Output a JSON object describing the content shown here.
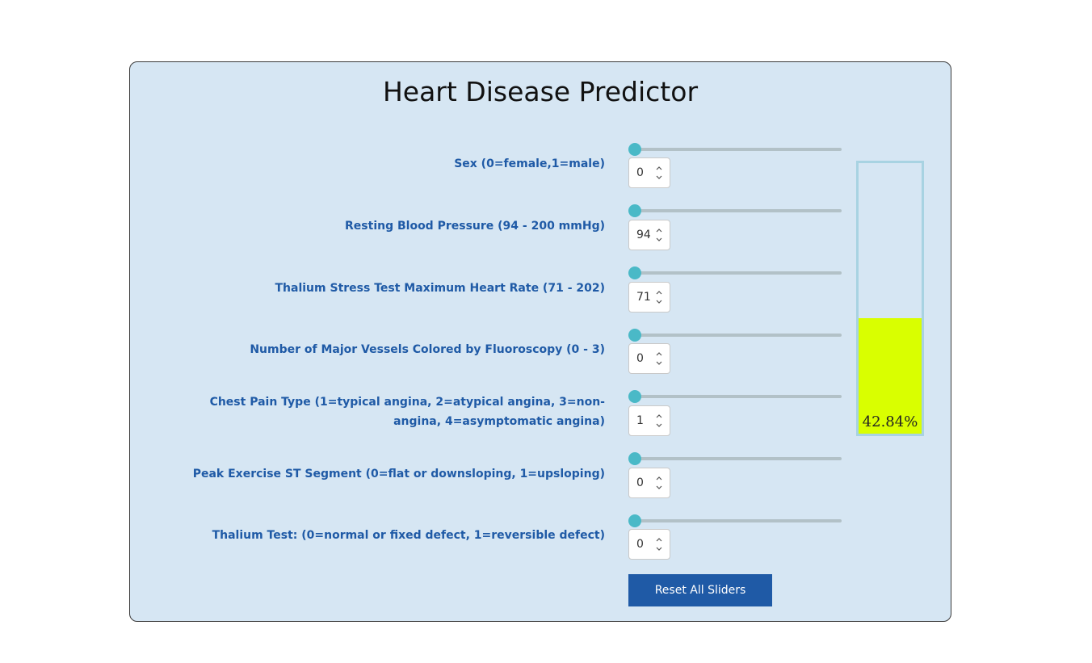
{
  "title": "Heart Disease Predictor",
  "fields": [
    {
      "label": "Sex (0=female,1=male)",
      "value": "0",
      "min": 0,
      "max": 1
    },
    {
      "label": "Resting Blood Pressure (94 - 200 mmHg)",
      "value": "94",
      "min": 94,
      "max": 200
    },
    {
      "label": "Thalium Stress Test Maximum Heart Rate (71 - 202)",
      "value": "71",
      "min": 71,
      "max": 202
    },
    {
      "label": "Number of Major Vessels Colored by Fluoroscopy (0 - 3)",
      "value": "0",
      "min": 0,
      "max": 3
    },
    {
      "label": "Chest Pain Type (1=typical angina, 2=atypical angina, 3=non-angina, 4=asymptomatic angina)",
      "value": "1",
      "min": 1,
      "max": 4
    },
    {
      "label": "Peak Exercise ST Segment (0=flat or downsloping, 1=upsloping)",
      "value": "0",
      "min": 0,
      "max": 1
    },
    {
      "label": "Thalium Test: (0=normal or fixed defect, 1=reversible defect)",
      "value": "0",
      "min": 0,
      "max": 1
    }
  ],
  "prediction": {
    "percent_label": "42.84%",
    "fraction": 0.4284,
    "fill_color": "#d9ff00"
  },
  "reset_label": "Reset All Sliders",
  "colors": {
    "label": "#1f5aa6",
    "thumb": "#4ab9c7",
    "panel": "#d6e6f3",
    "button": "#1f5aa6"
  }
}
